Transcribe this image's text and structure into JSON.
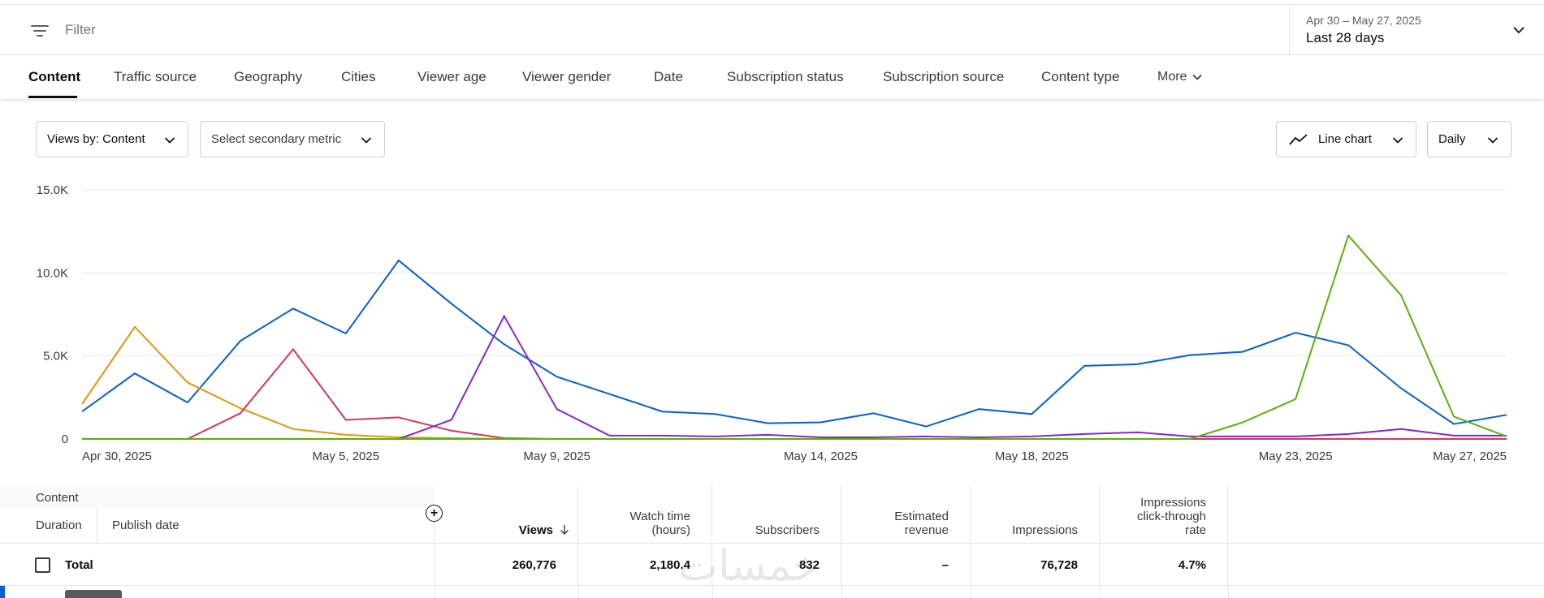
{
  "filter": {
    "placeholder": "Filter",
    "icon": "filter-list-icon"
  },
  "date_range": {
    "range": "Apr 30 – May 27, 2025",
    "period": "Last 28 days"
  },
  "tabs": [
    {
      "label": "Content",
      "active": true
    },
    {
      "label": "Traffic source"
    },
    {
      "label": "Geography"
    },
    {
      "label": "Cities"
    },
    {
      "label": "Viewer age"
    },
    {
      "label": "Viewer gender"
    },
    {
      "label": "Date"
    },
    {
      "label": "Subscription status"
    },
    {
      "label": "Subscription source"
    },
    {
      "label": "Content type"
    },
    {
      "label": "More"
    }
  ],
  "controls": {
    "primary_metric": "Views by: Content",
    "secondary_metric": "Select secondary metric",
    "chart_type": "Line chart",
    "granularity": "Daily"
  },
  "chart_data": {
    "type": "line",
    "x": [
      "Apr 30, 2025",
      "May 1, 2025",
      "May 2, 2025",
      "May 3, 2025",
      "May 4, 2025",
      "May 5, 2025",
      "May 6, 2025",
      "May 7, 2025",
      "May 8, 2025",
      "May 9, 2025",
      "May 10, 2025",
      "May 11, 2025",
      "May 12, 2025",
      "May 13, 2025",
      "May 14, 2025",
      "May 15, 2025",
      "May 16, 2025",
      "May 17, 2025",
      "May 18, 2025",
      "May 19, 2025",
      "May 20, 2025",
      "May 21, 2025",
      "May 22, 2025",
      "May 23, 2025",
      "May 24, 2025",
      "May 25, 2025",
      "May 26, 2025",
      "May 27, 2025"
    ],
    "x_tick_labels": [
      "Apr 30, 2025",
      "May 5, 2025",
      "May 9, 2025",
      "May 14, 2025",
      "May 18, 2025",
      "May 23, 2025",
      "May 27, 2025"
    ],
    "y_tick_labels": [
      "0",
      "5.0K",
      "10.0K",
      "15.0K"
    ],
    "ylim": [
      0,
      15000
    ],
    "grid": true,
    "series": [
      {
        "color": "#065fd4",
        "values": [
          1650,
          3950,
          2200,
          5900,
          7850,
          6350,
          10750,
          8150,
          5700,
          3750,
          2700,
          1650,
          1500,
          950,
          1000,
          1550,
          750,
          1800,
          1500,
          4400,
          4500,
          5050,
          5250,
          6400,
          5650,
          3050,
          900,
          1450
        ]
      },
      {
        "color": "#e8930c",
        "values": [
          2100,
          6750,
          3400,
          1850,
          600,
          250,
          100,
          50,
          0,
          0,
          0,
          0,
          0,
          0,
          0,
          0,
          0,
          0,
          0,
          0,
          0,
          0,
          0,
          0,
          0,
          0,
          0,
          0
        ]
      },
      {
        "color": "#d6365b",
        "values": [
          0,
          0,
          0,
          1550,
          5400,
          1150,
          1300,
          500,
          50,
          0,
          0,
          0,
          0,
          0,
          0,
          0,
          0,
          0,
          0,
          0,
          0,
          0,
          0,
          0,
          0,
          0,
          0,
          0
        ]
      },
      {
        "color": "#8e24c8",
        "values": [
          0,
          0,
          0,
          0,
          0,
          0,
          0,
          1150,
          7400,
          1800,
          200,
          200,
          150,
          250,
          100,
          100,
          150,
          100,
          150,
          300,
          400,
          150,
          150,
          150,
          300,
          600,
          200,
          200
        ]
      },
      {
        "color": "#5aaf08",
        "values": [
          0,
          0,
          0,
          0,
          0,
          0,
          0,
          0,
          0,
          0,
          0,
          0,
          0,
          0,
          0,
          0,
          0,
          0,
          0,
          0,
          0,
          0,
          1000,
          2400,
          12250,
          8650,
          1350,
          150
        ]
      }
    ]
  },
  "table": {
    "content_label": "Content",
    "duration_label": "Duration",
    "publish_date_label": "Publish date",
    "headers": [
      {
        "label": "Views",
        "sorted": true
      },
      {
        "label": "Watch time (hours)"
      },
      {
        "label": "Subscribers"
      },
      {
        "label": "Estimated revenue"
      },
      {
        "label": "Impressions"
      },
      {
        "label": "Impressions click-through rate"
      }
    ],
    "total_row": {
      "label": "Total",
      "values": [
        "260,776",
        "2,180.4",
        "832",
        "–",
        "76,728",
        "4.7%"
      ]
    }
  },
  "watermark": "خمسات"
}
